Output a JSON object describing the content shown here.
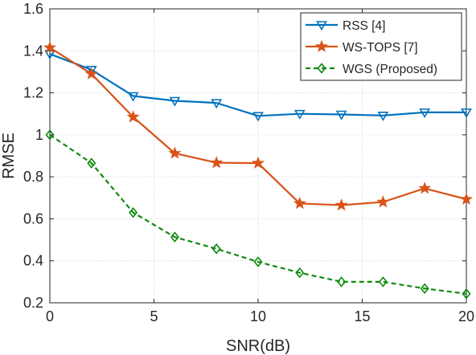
{
  "chart_data": {
    "type": "line",
    "xlabel": "SNR(dB)",
    "ylabel": "RMSE",
    "xlim": [
      0,
      20
    ],
    "ylim": [
      0.2,
      1.6
    ],
    "xticks": [
      0,
      5,
      10,
      15,
      20
    ],
    "yticks": [
      0.2,
      0.4,
      0.6,
      0.8,
      1.0,
      1.2,
      1.4,
      1.6
    ],
    "xtick_labels": [
      "0",
      "5",
      "10",
      "15",
      "20"
    ],
    "ytick_labels": [
      "0.2",
      "0.4",
      "0.6",
      "0.8",
      "1",
      "1.2",
      "1.4",
      "1.6"
    ],
    "grid": true,
    "legend_position": "top-right",
    "x": [
      0,
      2,
      4,
      6,
      8,
      10,
      12,
      14,
      16,
      18,
      20
    ],
    "series": [
      {
        "name": "RSS [4]",
        "color": "#0072bd",
        "marker": "triangle-down",
        "line_style": "solid",
        "values": [
          1.385,
          1.31,
          1.185,
          1.162,
          1.152,
          1.09,
          1.1,
          1.097,
          1.092,
          1.107,
          1.107
        ]
      },
      {
        "name": "WS-TOPS [7]",
        "color": "#d95319",
        "marker": "star",
        "line_style": "solid",
        "values": [
          1.415,
          1.29,
          1.085,
          0.912,
          0.867,
          0.865,
          0.673,
          0.665,
          0.68,
          0.745,
          0.693
        ]
      },
      {
        "name": "WGS (Proposed)",
        "color": "#0e8a0e",
        "marker": "diamond",
        "line_style": "dashed",
        "values": [
          1.0,
          0.865,
          0.63,
          0.513,
          0.457,
          0.395,
          0.343,
          0.3,
          0.3,
          0.268,
          0.243
        ]
      }
    ]
  }
}
